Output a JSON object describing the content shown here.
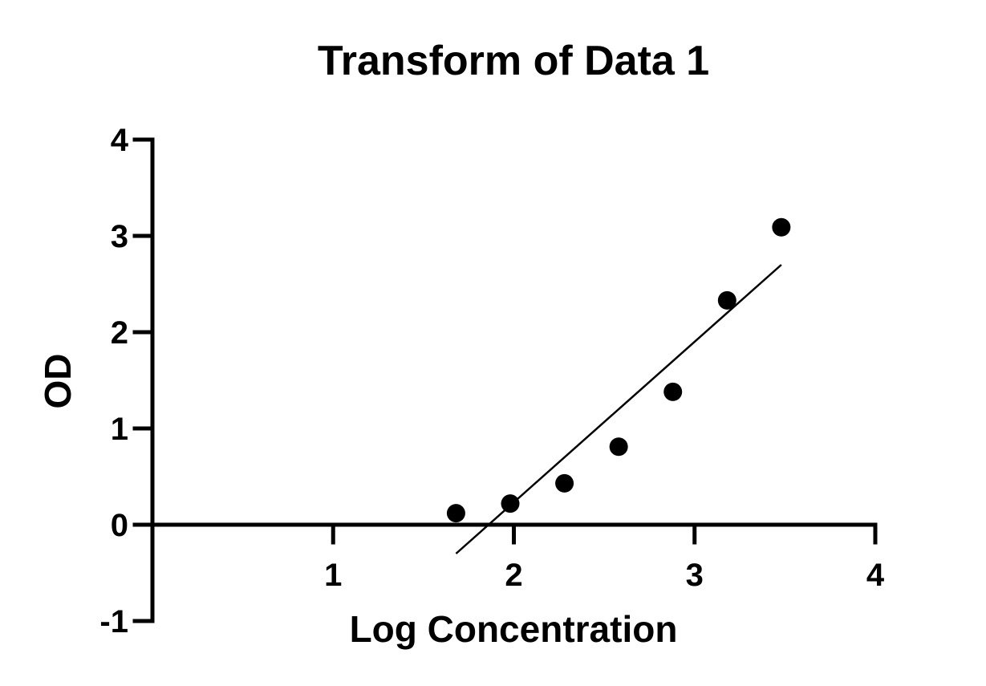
{
  "chart_data": {
    "type": "scatter",
    "title": "Transform of Data 1",
    "xlabel": "Log Concentration",
    "ylabel": "OD",
    "xlim": [
      0,
      4
    ],
    "ylim": [
      -1,
      4
    ],
    "x_ticks": [
      "1",
      "2",
      "3",
      "4"
    ],
    "y_ticks": [
      "-1",
      "0",
      "1",
      "2",
      "3",
      "4"
    ],
    "grid": false,
    "legend": "none",
    "series": [
      {
        "points": [
          {
            "x": 1.68,
            "y": 0.12
          },
          {
            "x": 1.98,
            "y": 0.22
          },
          {
            "x": 2.28,
            "y": 0.43
          },
          {
            "x": 2.58,
            "y": 0.81
          },
          {
            "x": 2.88,
            "y": 1.38
          },
          {
            "x": 3.18,
            "y": 2.33
          },
          {
            "x": 3.48,
            "y": 3.09
          }
        ],
        "color": "#000000"
      }
    ],
    "fit_line": {
      "x": [
        1.68,
        3.48
      ],
      "y": [
        -0.3,
        2.7
      ],
      "color": "#000000"
    }
  }
}
